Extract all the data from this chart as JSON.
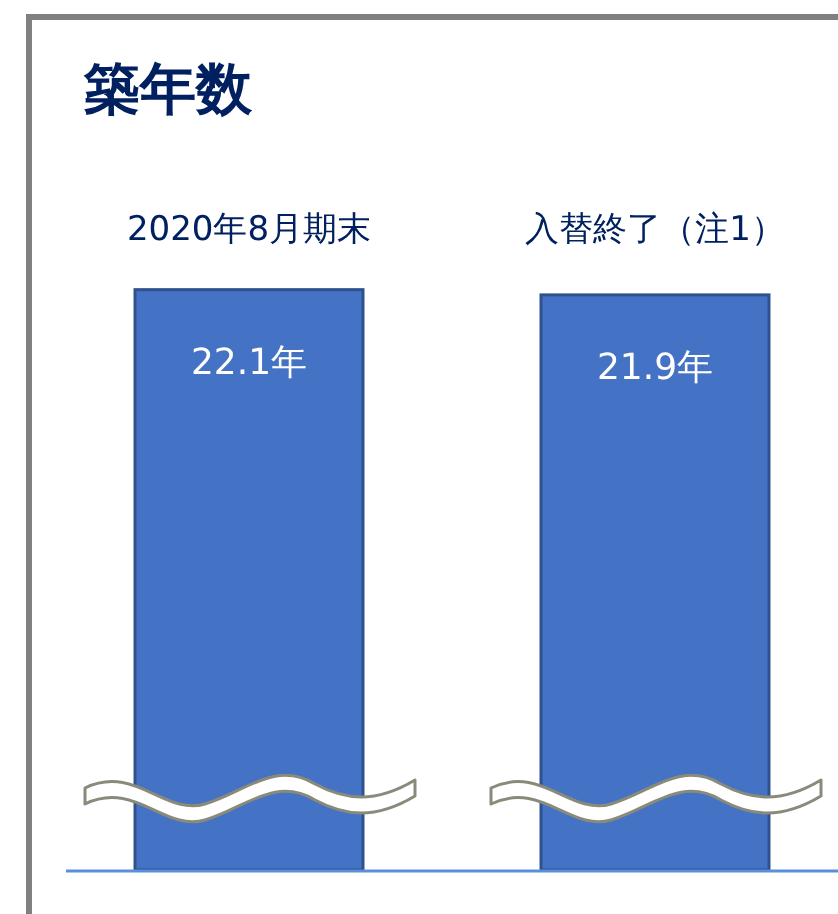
{
  "chart_data": {
    "type": "bar",
    "title": "築年数",
    "categories": [
      "2020年8月期末",
      "入替終了（注1）"
    ],
    "values": [
      22.1,
      21.9
    ],
    "value_labels": [
      "22.1年",
      "21.9年"
    ],
    "color": "#4472c4"
  }
}
